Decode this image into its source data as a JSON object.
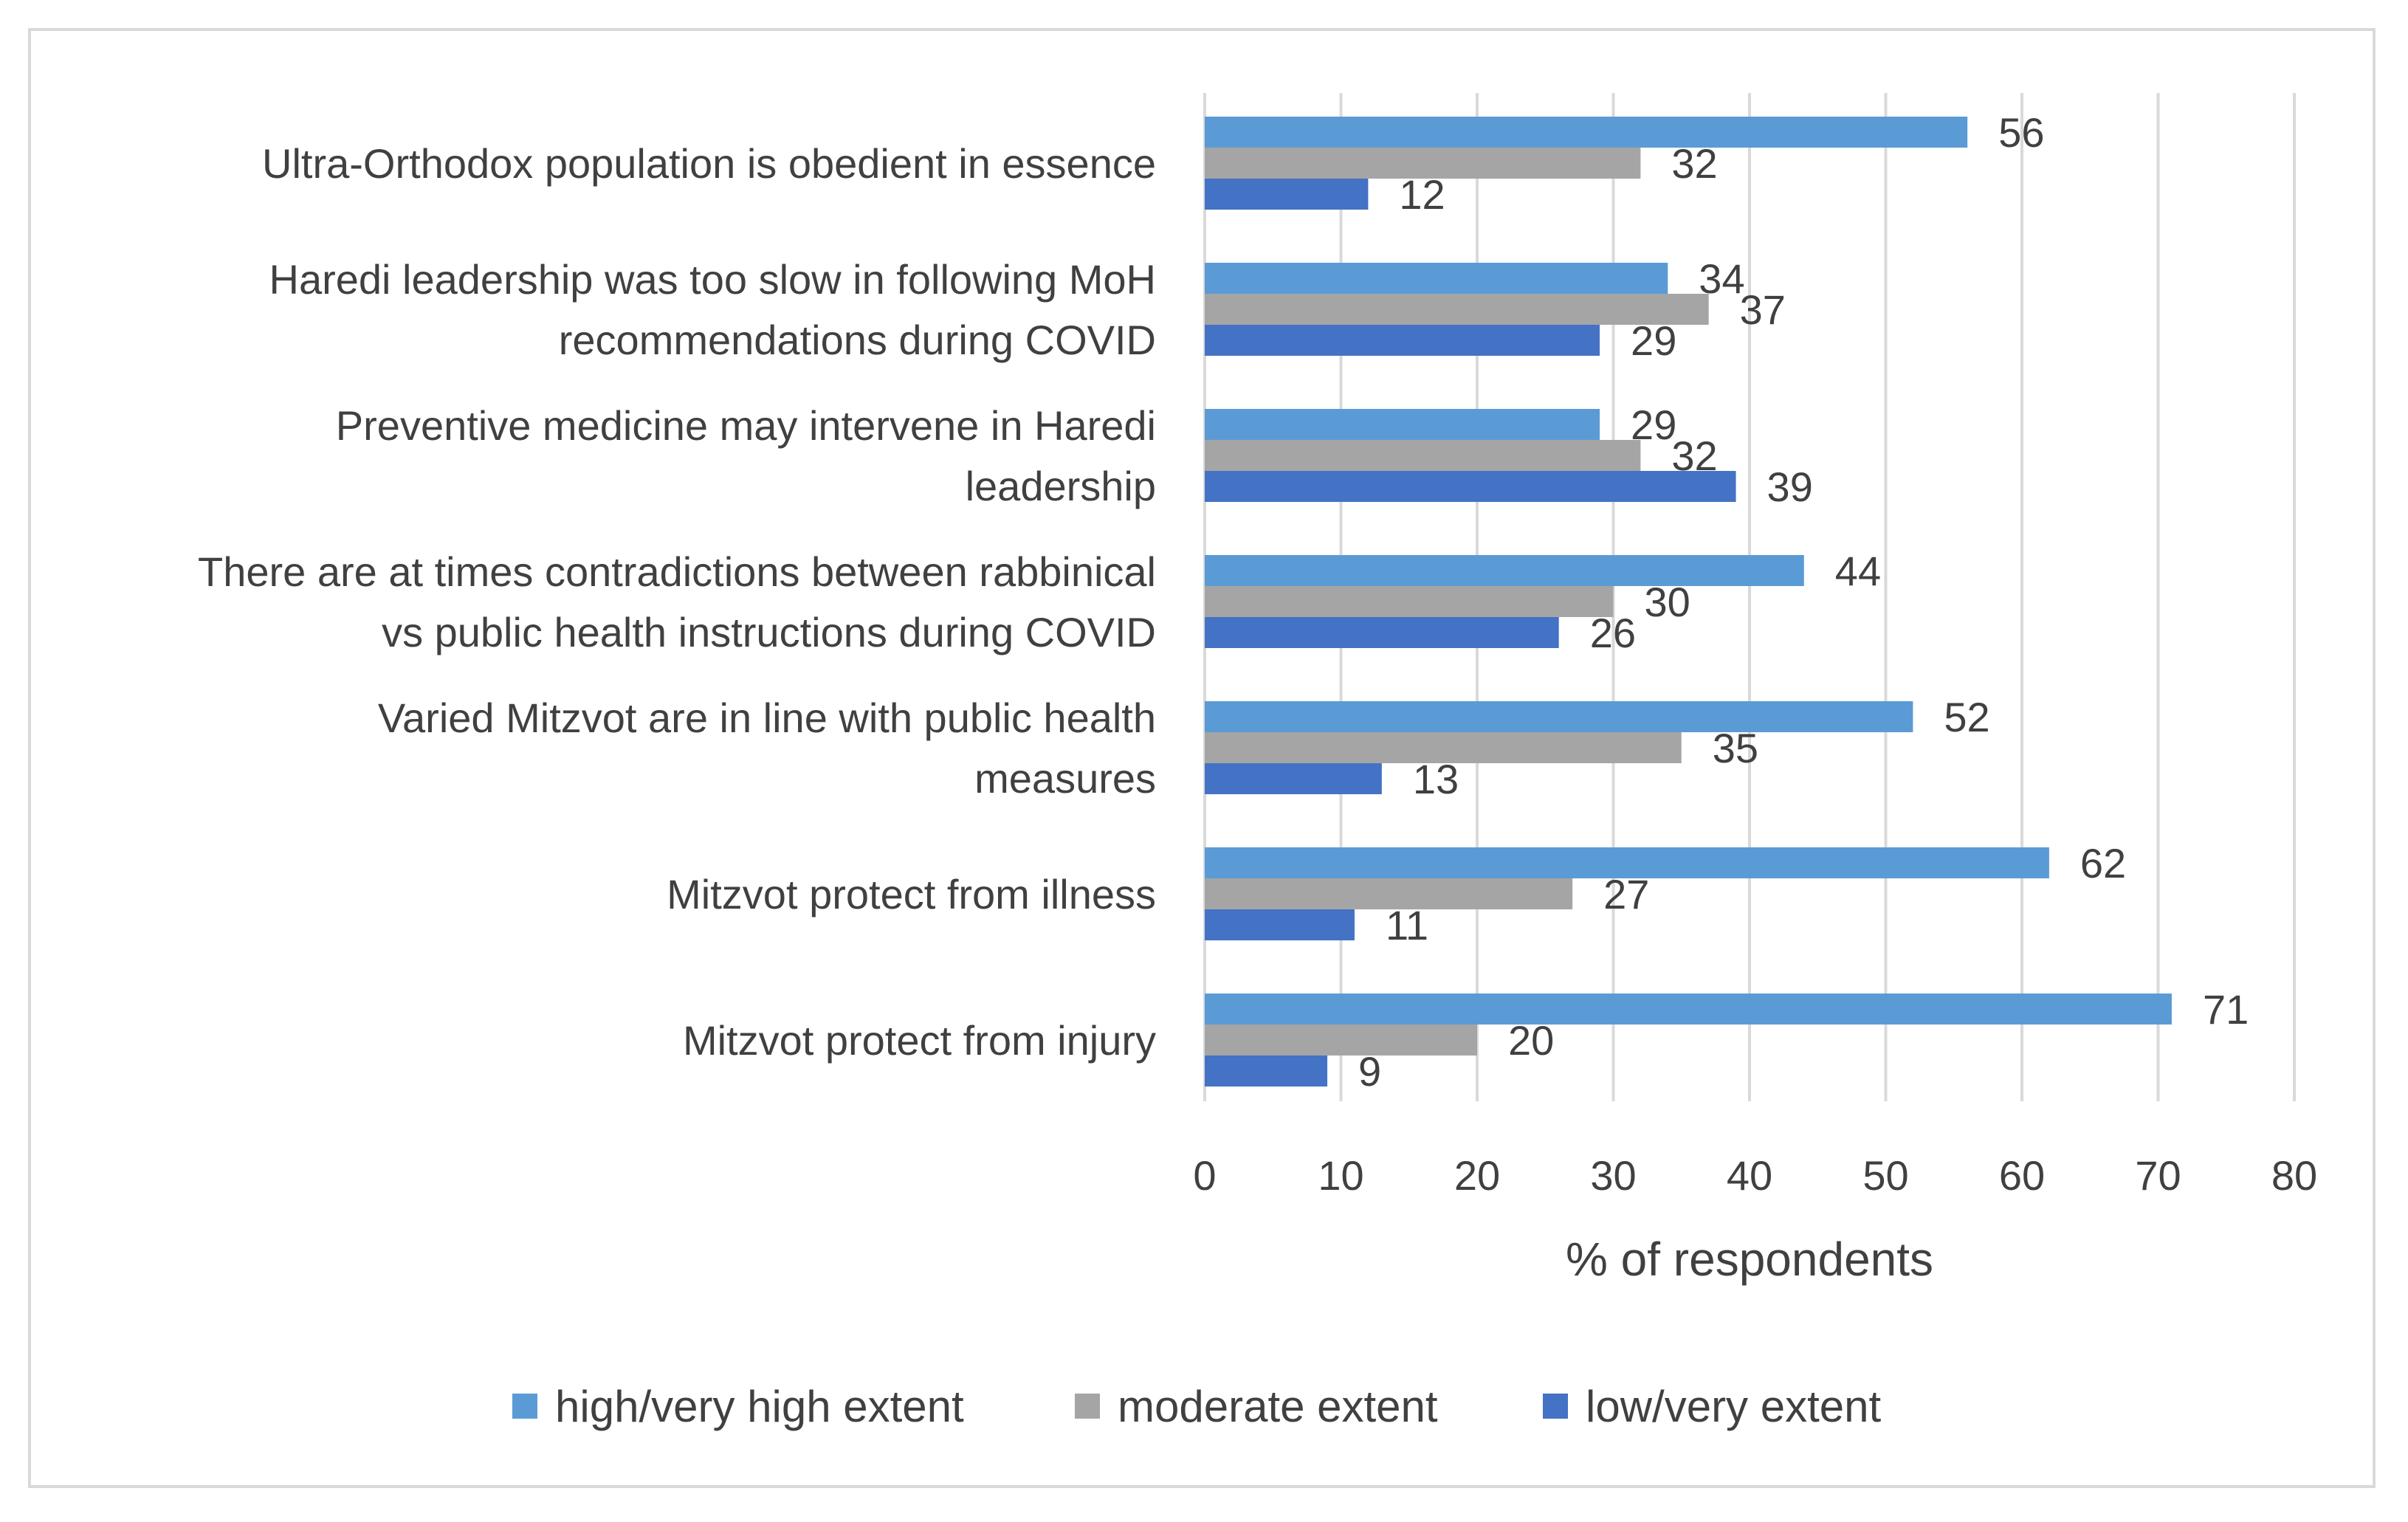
{
  "chart_data": {
    "type": "bar",
    "orientation": "horizontal",
    "title": "",
    "xlabel": "% of respondents",
    "ylabel": "",
    "xlim": [
      0,
      80
    ],
    "xticks": [
      0,
      10,
      20,
      30,
      40,
      50,
      60,
      70,
      80
    ],
    "grid": true,
    "legend_position": "bottom",
    "categories": [
      [
        "Ultra-Orthodox population is obedient in essence"
      ],
      [
        "Haredi leadership was too slow in following MoH",
        "recommendations during COVID"
      ],
      [
        "Preventive medicine may intervene in Haredi",
        "leadership"
      ],
      [
        "There are at times contradictions between rabbinical",
        "vs public health instructions during COVID"
      ],
      [
        "Varied Mitzvot are in line with public health",
        "measures"
      ],
      [
        "Mitzvot protect from illness"
      ],
      [
        "Mitzvot protect from injury"
      ]
    ],
    "series": [
      {
        "name": "high/very high extent",
        "color": "#5b9bd5",
        "values": [
          56,
          34,
          29,
          44,
          52,
          62,
          71
        ]
      },
      {
        "name": "moderate extent",
        "color": "#a5a5a5",
        "values": [
          32,
          37,
          32,
          30,
          35,
          27,
          20
        ]
      },
      {
        "name": "low/very extent",
        "color": "#4472c4",
        "values": [
          12,
          29,
          39,
          26,
          13,
          11,
          9
        ]
      }
    ]
  }
}
